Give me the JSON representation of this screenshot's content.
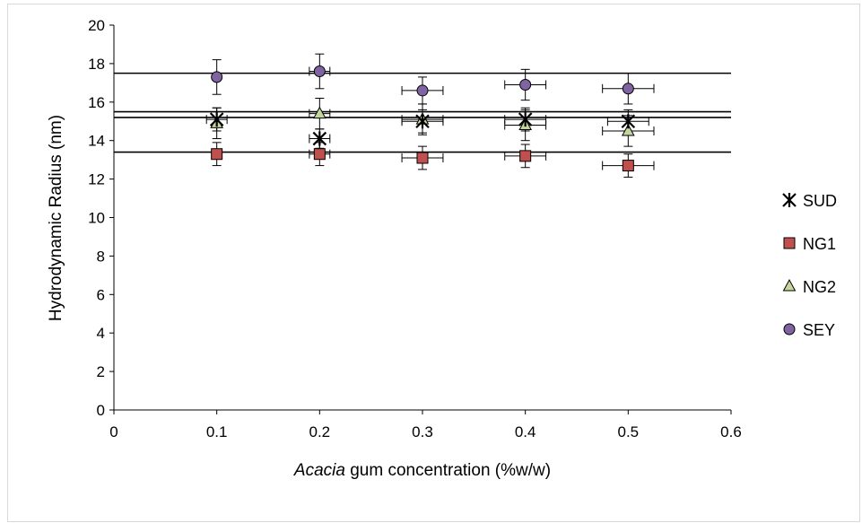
{
  "chart_data": {
    "type": "scatter",
    "title": "",
    "xlabel_italic": "Acacia",
    "xlabel_rest": " gum concentration (%w/w)",
    "ylabel": "Hydrodynamic Radius (nm)",
    "xlim": [
      0,
      0.6
    ],
    "ylim": [
      0,
      20
    ],
    "x_ticks": [
      0,
      0.1,
      0.2,
      0.3,
      0.4,
      0.5,
      0.6
    ],
    "x_tick_labels": [
      "0",
      "0.1",
      "0.2",
      "0.3",
      "0.4",
      "0.5",
      "0.6"
    ],
    "y_ticks": [
      0,
      2,
      4,
      6,
      8,
      10,
      12,
      14,
      16,
      18,
      20
    ],
    "y_tick_labels": [
      "0",
      "2",
      "4",
      "6",
      "8",
      "10",
      "12",
      "14",
      "16",
      "18",
      "20"
    ],
    "grid": false,
    "legend_position": "right",
    "series": [
      {
        "name": "SUD",
        "marker": "star",
        "color": "#000000",
        "x": [
          0.1,
          0.2,
          0.3,
          0.4,
          0.5
        ],
        "y": [
          15.1,
          14.1,
          15.0,
          15.1,
          15.0
        ],
        "y_err": [
          0.6,
          0.5,
          0.6,
          0.6,
          0.6
        ],
        "x_err": [
          0.01,
          0.01,
          0.02,
          0.02,
          0.02
        ],
        "mean": 15.2
      },
      {
        "name": "NG1",
        "marker": "square",
        "color": "#c0504d",
        "x": [
          0.1,
          0.2,
          0.3,
          0.4,
          0.5
        ],
        "y": [
          13.3,
          13.3,
          13.1,
          13.2,
          12.7
        ],
        "y_err": [
          0.6,
          0.6,
          0.6,
          0.6,
          0.6
        ],
        "x_err": [
          0.0,
          0.01,
          0.02,
          0.02,
          0.025
        ],
        "mean": 13.4
      },
      {
        "name": "NG2",
        "marker": "triangle",
        "color": "#c3d69b",
        "x": [
          0.1,
          0.2,
          0.3,
          0.4,
          0.5
        ],
        "y": [
          14.9,
          15.4,
          15.1,
          14.8,
          14.5
        ],
        "y_err": [
          0.8,
          0.8,
          0.8,
          0.8,
          0.8
        ],
        "x_err": [
          0.0,
          0.01,
          0.02,
          0.02,
          0.025
        ],
        "mean": 15.5
      },
      {
        "name": "SEY",
        "marker": "circle",
        "color": "#8064a2",
        "x": [
          0.1,
          0.2,
          0.3,
          0.4,
          0.5
        ],
        "y": [
          17.3,
          17.6,
          16.6,
          16.9,
          16.7
        ],
        "y_err": [
          0.9,
          0.9,
          0.7,
          0.8,
          0.8
        ],
        "x_err": [
          0.0,
          0.01,
          0.02,
          0.02,
          0.025
        ],
        "mean": 17.5
      }
    ]
  }
}
